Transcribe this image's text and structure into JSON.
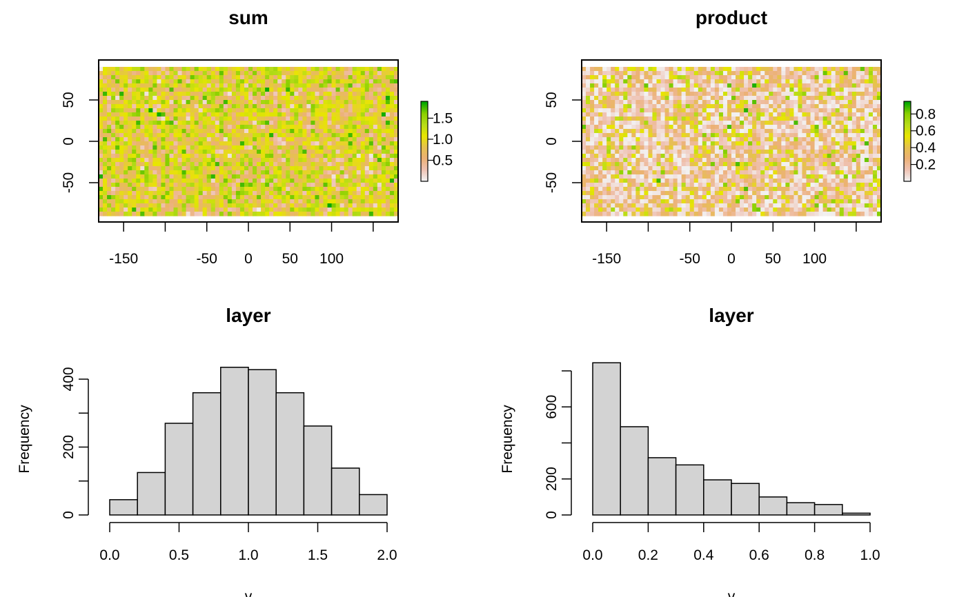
{
  "chart_data": [
    {
      "type": "heatmap",
      "title": "sum",
      "x_ticks": [
        "-150",
        "-50",
        "0",
        "50",
        "100"
      ],
      "x_tick_values": [
        -150,
        -50,
        0,
        50,
        100
      ],
      "x_minor_ticks": [
        -100,
        150
      ],
      "y_ticks": [
        "50",
        "0",
        "-50"
      ],
      "y_tick_values": [
        50,
        0,
        -50
      ],
      "xlim": [
        -180,
        180
      ],
      "ylim": [
        -90,
        90
      ],
      "legend": {
        "ticks": [
          "1.5",
          "1.0",
          "0.5"
        ],
        "tick_values": [
          1.5,
          1.0,
          0.5
        ],
        "range": [
          0,
          1.9
        ],
        "colors": [
          "#f2f2f2",
          "#efc2b3",
          "#ecb176",
          "#e6c14f",
          "#e8e600",
          "#b7dc19",
          "#8bd000",
          "#00a600"
        ]
      }
    },
    {
      "type": "heatmap",
      "title": "product",
      "x_ticks": [
        "-150",
        "-50",
        "0",
        "50",
        "100"
      ],
      "x_tick_values": [
        -150,
        -50,
        0,
        50,
        100
      ],
      "x_minor_ticks": [
        -100,
        150
      ],
      "y_ticks": [
        "50",
        "0",
        "-50"
      ],
      "y_tick_values": [
        50,
        0,
        -50
      ],
      "xlim": [
        -180,
        180
      ],
      "ylim": [
        -90,
        90
      ],
      "legend": {
        "ticks": [
          "0.8",
          "0.6",
          "0.4",
          "0.2"
        ],
        "tick_values": [
          0.8,
          0.6,
          0.4,
          0.2
        ],
        "range": [
          0,
          0.95
        ],
        "colors": [
          "#f2f2f2",
          "#efc2b3",
          "#ecb176",
          "#e6c14f",
          "#e8e600",
          "#b7dc19",
          "#8bd000",
          "#00a600"
        ]
      }
    },
    {
      "type": "bar",
      "title": "layer",
      "ylabel": "Frequency",
      "xlabel": "v",
      "bin_edges": [
        0.0,
        0.2,
        0.4,
        0.6,
        0.8,
        1.0,
        1.2,
        1.4,
        1.6,
        1.8,
        2.0
      ],
      "values": [
        45,
        125,
        270,
        360,
        435,
        428,
        360,
        262,
        138,
        60
      ],
      "x_ticks": [
        "0.0",
        "0.5",
        "1.0",
        "1.5",
        "2.0"
      ],
      "x_tick_values": [
        0.0,
        0.5,
        1.0,
        1.5,
        2.0
      ],
      "y_ticks": [
        "0",
        "200",
        "400"
      ],
      "y_tick_values": [
        0,
        200,
        400
      ],
      "y_minor_ticks": [
        100,
        300
      ],
      "xlim": [
        0,
        2
      ],
      "ylim": [
        0,
        400
      ]
    },
    {
      "type": "bar",
      "title": "layer",
      "ylabel": "Frequency",
      "xlabel": "v",
      "bin_edges": [
        0.0,
        0.1,
        0.2,
        0.3,
        0.4,
        0.5,
        0.6,
        0.7,
        0.8,
        0.9,
        1.0
      ],
      "values": [
        845,
        490,
        318,
        278,
        195,
        175,
        100,
        68,
        58,
        10
      ],
      "x_ticks": [
        "0.0",
        "0.2",
        "0.4",
        "0.6",
        "0.8",
        "1.0"
      ],
      "x_tick_values": [
        0.0,
        0.2,
        0.4,
        0.6,
        0.8,
        1.0
      ],
      "y_ticks": [
        "0",
        "200",
        "600"
      ],
      "y_tick_values": [
        0,
        200,
        600
      ],
      "y_minor_ticks": [
        400,
        800
      ],
      "xlim": [
        0,
        1
      ],
      "ylim": [
        0,
        800
      ]
    }
  ]
}
